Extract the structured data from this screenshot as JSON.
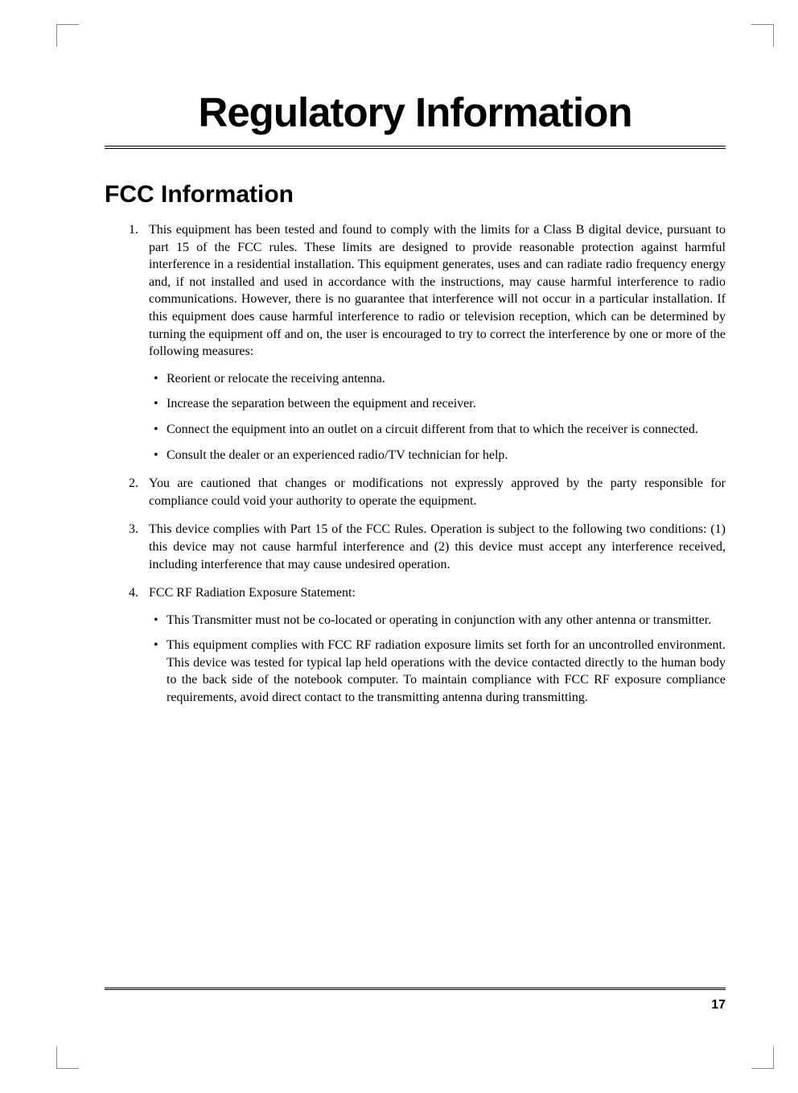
{
  "chapter_title": "Regulatory Information",
  "section_title": "FCC Information",
  "items": [
    {
      "num": "1.",
      "text": "This equipment has been tested and found to comply with the limits for a Class B digital device, pursuant to part 15 of the FCC rules. These limits are designed to provide reasonable protection against harmful interference in a residential installation. This equipment generates, uses and can radiate radio frequency energy and, if not installed and used in accordance with the instructions, may cause harmful interference to radio communications. However, there is no guarantee that interference will not occur in a particular installation. If this equipment does cause harmful interference to radio or television reception, which can be determined by turning the equipment off and on, the user is encouraged to try to correct the interference by one or more of the following measures:",
      "bullets": [
        "Reorient or relocate the receiving antenna.",
        "Increase the separation between the equipment and receiver.",
        "Connect the equipment into an outlet on a circuit different from that to which the receiver is connected.",
        "Consult the dealer or an experienced radio/TV technician for help."
      ]
    },
    {
      "num": "2.",
      "text": "You are cautioned that changes or modifications not expressly approved by the party responsible for compliance could void your authority to operate the equipment."
    },
    {
      "num": "3.",
      "text": "This device complies with Part 15 of the FCC Rules. Operation is subject to the following two conditions: (1) this device may not cause harmful interference and (2) this device must accept any interference received, including interference that may cause undesired operation."
    },
    {
      "num": "4.",
      "text": "FCC RF Radiation Exposure Statement:",
      "bullets": [
        "This Transmitter must not be co-located or operating in conjunction with any other antenna or transmitter.",
        "This equipment complies with FCC RF radiation exposure limits set forth for an uncontrolled environment. This device was tested for typical lap held operations with the device contacted directly to the human body to the back side of the notebook computer. To maintain compliance with FCC RF exposure compliance requirements, avoid direct contact to the transmitting antenna during transmitting."
      ]
    }
  ],
  "page_number": "17"
}
